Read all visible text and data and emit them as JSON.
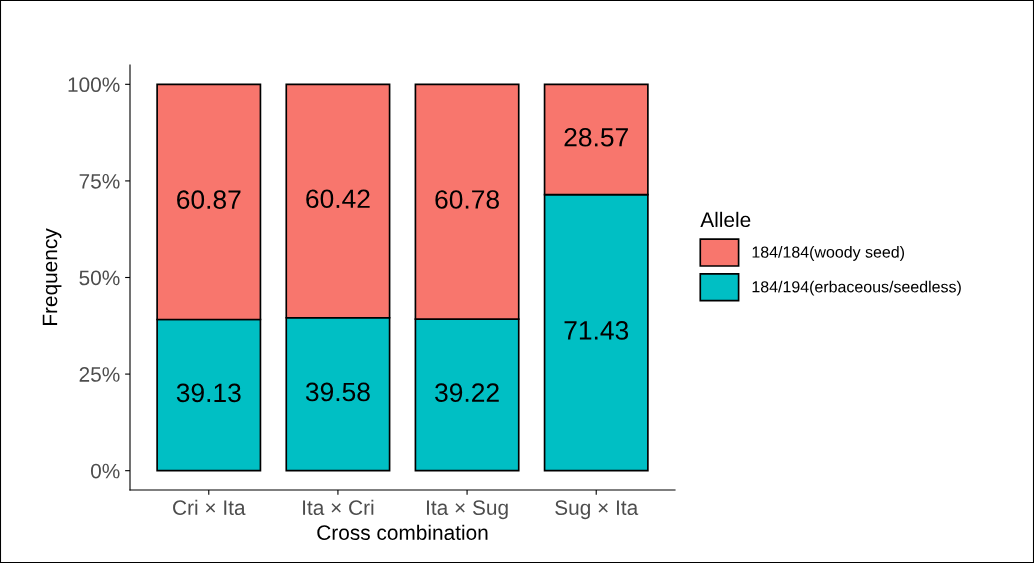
{
  "chart_data": {
    "type": "bar",
    "stacked": true,
    "xlabel": "Cross combination",
    "ylabel": "Frequency",
    "legend_title": "Allele",
    "legend": "right",
    "categories": [
      "Cri × Ita",
      "Ita × Cri",
      "Ita × Sug",
      "Sug × Ita"
    ],
    "series": [
      {
        "name": "184/194(erbaceous/seedless)",
        "color": "#00bfc4",
        "values": [
          39.13,
          39.58,
          39.22,
          71.43
        ]
      },
      {
        "name": "184/184(woody seed)",
        "color": "#f8766d",
        "values": [
          60.87,
          60.42,
          60.78,
          28.57
        ]
      }
    ],
    "data_labels": true,
    "grid": false,
    "ylim": [
      -5,
      105
    ],
    "yticks": [
      {
        "value": 0,
        "label": "0%"
      },
      {
        "value": 25,
        "label": "25%"
      },
      {
        "value": 50,
        "label": "50%"
      },
      {
        "value": 75,
        "label": "75%"
      },
      {
        "value": 100,
        "label": "100%"
      }
    ]
  }
}
